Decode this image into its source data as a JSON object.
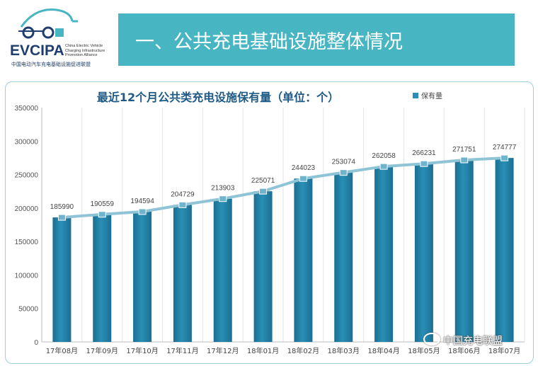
{
  "logo": {
    "name": "EVCIPA",
    "english": [
      "China Electric Vehicle",
      "Charging Infrastructure",
      "Promotion Alliance"
    ],
    "chinese": "中国电动汽车充电基础设施促进联盟"
  },
  "header": {
    "title": "一、公共充电基础设施整体情况"
  },
  "watermark": {
    "text": "中国充电联盟"
  },
  "colors": {
    "banner": "#48b5c2",
    "bar": "#2a8fb5",
    "bar_dark": "#1b6f93",
    "line": "#8fc3d6",
    "title": "#1f5a85"
  },
  "chart_data": {
    "type": "bar",
    "title": "最近12个月公共类充电设施保有量（单位：个）",
    "legend": {
      "entries": [
        "保有量"
      ],
      "position": "top-right"
    },
    "categories": [
      "17年08月",
      "17年09月",
      "17年10月",
      "17年11月",
      "17年12月",
      "18年01月",
      "18年02月",
      "18年03月",
      "18年04月",
      "18年05月",
      "18年06月",
      "18年07月"
    ],
    "series": [
      {
        "name": "保有量",
        "values": [
          185990,
          190559,
          194594,
          204729,
          213903,
          225071,
          244023,
          253074,
          262058,
          266231,
          271751,
          274777
        ]
      }
    ],
    "trend_line": true,
    "ylim": [
      0,
      350000
    ],
    "yticks": [
      0,
      50000,
      100000,
      150000,
      200000,
      250000,
      300000,
      350000
    ],
    "grid": "vertical"
  }
}
